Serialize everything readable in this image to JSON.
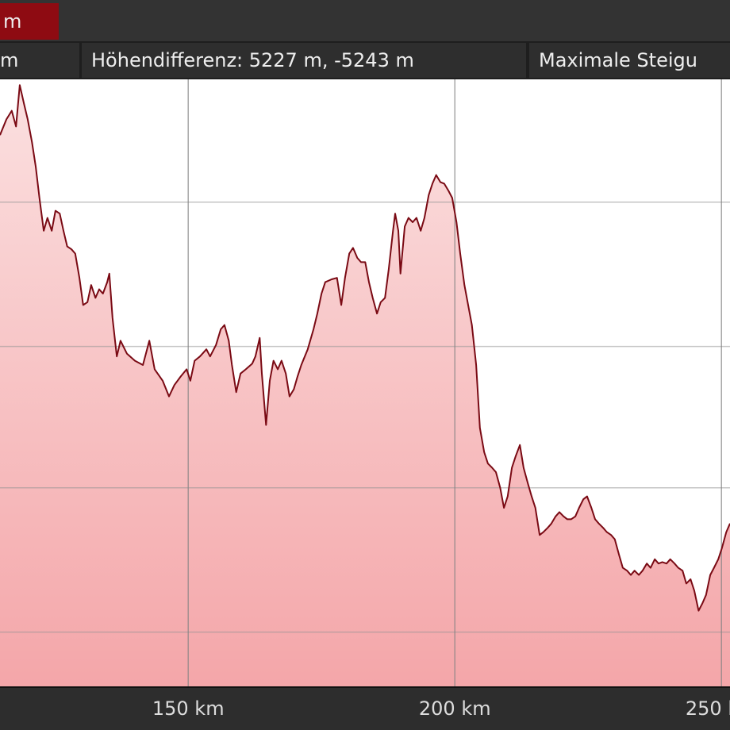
{
  "header": {
    "unit_badge": "m"
  },
  "stats": {
    "cell_left": "m",
    "elevation_difference": "Höhendifferenz: 5227 m, -5243 m",
    "max_gradient": "Maximale Steigu"
  },
  "colors": {
    "line": "#7a0a14",
    "fill_top": "#fbe0e0",
    "fill_bottom": "#f4a6a9",
    "accent": "#8e0b12"
  },
  "chart_data": {
    "type": "area",
    "title": "",
    "xlabel": "",
    "ylabel": "",
    "xlim": [
      114.7,
      251.6
    ],
    "ylim": [
      0,
      4.25
    ],
    "x_ticks": [
      {
        "value": 150,
        "label": "150 km"
      },
      {
        "value": 200,
        "label": "200 km"
      },
      {
        "value": 250,
        "label": "250 km"
      }
    ],
    "y_gridlines": [
      0.38,
      1.39,
      2.38,
      3.39
    ],
    "grid": true,
    "series": [
      {
        "x": [
          114.7,
          115.9,
          116.9,
          117.7,
          118.4,
          119.2,
          119.9,
          120.7,
          121.4,
          122.1,
          122.9,
          123.6,
          124.4,
          125.1,
          125.9,
          126.6,
          127.3,
          128.1,
          128.8,
          129.6,
          130.3,
          131.1,
          131.8,
          132.6,
          133.3,
          134.0,
          134.8,
          135.2,
          135.8,
          136.6,
          137.3,
          138.5,
          140.0,
          141.5,
          142.7,
          143.7,
          145.2,
          146.4,
          147.4,
          148.6,
          149.7,
          150.4,
          151.2,
          152.2,
          153.4,
          154.1,
          155.2,
          156.1,
          156.8,
          157.6,
          158.2,
          159.0,
          159.8,
          160.8,
          162.0,
          162.6,
          163.4,
          163.8,
          164.6,
          165.3,
          166.0,
          166.8,
          167.5,
          168.3,
          169.0,
          169.8,
          170.5,
          171.2,
          172.4,
          173.5,
          174.2,
          175.0,
          175.7,
          176.9,
          177.9,
          178.7,
          179.4,
          180.2,
          180.9,
          181.7,
          182.4,
          183.2,
          183.9,
          184.6,
          185.4,
          186.1,
          186.9,
          187.6,
          188.4,
          188.8,
          189.4,
          189.8,
          190.6,
          191.3,
          192.1,
          192.8,
          193.6,
          194.3,
          195.1,
          195.8,
          196.5,
          197.3,
          198.0,
          198.8,
          199.5,
          200.3,
          201.0,
          201.8,
          202.5,
          203.2,
          204.0,
          204.7,
          205.5,
          206.2,
          207.0,
          207.7,
          208.5,
          209.2,
          209.9,
          210.7,
          211.4,
          212.2,
          212.9,
          213.7,
          214.4,
          215.1,
          215.9,
          216.6,
          217.4,
          218.1,
          218.9,
          219.6,
          220.4,
          221.1,
          221.8,
          222.6,
          223.3,
          224.1,
          224.8,
          225.6,
          226.3,
          227.0,
          227.8,
          228.5,
          229.3,
          230.0,
          230.8,
          231.5,
          232.3,
          233.0,
          233.7,
          234.5,
          235.2,
          236.0,
          236.7,
          237.5,
          238.2,
          238.9,
          239.7,
          240.4,
          241.2,
          241.9,
          242.7,
          243.4,
          244.2,
          244.9,
          245.7,
          246.4,
          247.1,
          247.9,
          248.6,
          249.4,
          250.1,
          250.9,
          251.6
        ],
        "y": [
          3.86,
          3.97,
          4.03,
          3.92,
          4.21,
          4.08,
          3.97,
          3.81,
          3.64,
          3.42,
          3.19,
          3.28,
          3.19,
          3.33,
          3.31,
          3.19,
          3.08,
          3.06,
          3.03,
          2.86,
          2.67,
          2.69,
          2.81,
          2.72,
          2.78,
          2.75,
          2.83,
          2.89,
          2.58,
          2.31,
          2.42,
          2.33,
          2.28,
          2.25,
          2.42,
          2.22,
          2.14,
          2.03,
          2.11,
          2.17,
          2.22,
          2.14,
          2.28,
          2.31,
          2.36,
          2.31,
          2.39,
          2.5,
          2.53,
          2.42,
          2.25,
          2.06,
          2.19,
          2.22,
          2.26,
          2.31,
          2.44,
          2.19,
          1.83,
          2.14,
          2.28,
          2.22,
          2.28,
          2.19,
          2.03,
          2.08,
          2.17,
          2.25,
          2.36,
          2.5,
          2.61,
          2.75,
          2.83,
          2.85,
          2.86,
          2.67,
          2.86,
          3.03,
          3.07,
          3.0,
          2.97,
          2.97,
          2.83,
          2.72,
          2.61,
          2.69,
          2.72,
          2.92,
          3.19,
          3.31,
          3.19,
          2.89,
          3.22,
          3.28,
          3.25,
          3.28,
          3.19,
          3.28,
          3.44,
          3.52,
          3.58,
          3.53,
          3.52,
          3.47,
          3.42,
          3.25,
          3.03,
          2.81,
          2.67,
          2.53,
          2.25,
          1.81,
          1.64,
          1.56,
          1.53,
          1.5,
          1.39,
          1.25,
          1.33,
          1.53,
          1.61,
          1.69,
          1.53,
          1.42,
          1.33,
          1.25,
          1.06,
          1.08,
          1.11,
          1.14,
          1.19,
          1.22,
          1.19,
          1.17,
          1.17,
          1.19,
          1.25,
          1.31,
          1.33,
          1.25,
          1.17,
          1.14,
          1.11,
          1.08,
          1.06,
          1.03,
          0.92,
          0.83,
          0.81,
          0.78,
          0.81,
          0.78,
          0.81,
          0.86,
          0.83,
          0.89,
          0.86,
          0.87,
          0.86,
          0.89,
          0.86,
          0.83,
          0.81,
          0.72,
          0.75,
          0.67,
          0.53,
          0.58,
          0.64,
          0.78,
          0.83,
          0.89,
          0.97,
          1.08,
          1.14
        ]
      }
    ]
  }
}
